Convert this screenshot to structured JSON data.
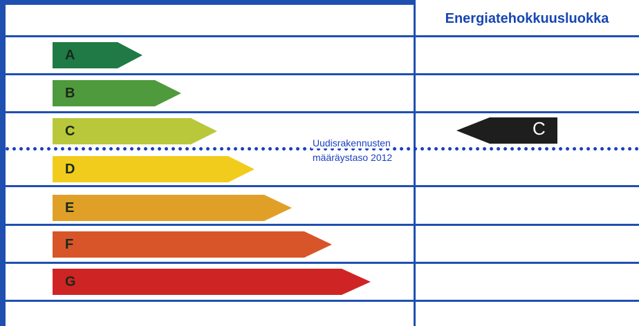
{
  "header": {
    "title": "Energiatehokkuusluokka"
  },
  "reference": {
    "line1": "Uudisrakennusten",
    "line2": "määräystaso 2012"
  },
  "classes": [
    {
      "label": "A",
      "color": "#1f7a45"
    },
    {
      "label": "B",
      "color": "#4f9a3d"
    },
    {
      "label": "C",
      "color": "#b9c83a"
    },
    {
      "label": "D",
      "color": "#f2cc1c"
    },
    {
      "label": "E",
      "color": "#e0a028"
    },
    {
      "label": "F",
      "color": "#d8552a"
    },
    {
      "label": "G",
      "color": "#cf2424"
    }
  ],
  "indicator": {
    "label": "C",
    "color": "#1e1e1e"
  },
  "colors": {
    "grid": "#1f4fb0",
    "title": "#1646b4",
    "reference": "#1a3fc0"
  }
}
